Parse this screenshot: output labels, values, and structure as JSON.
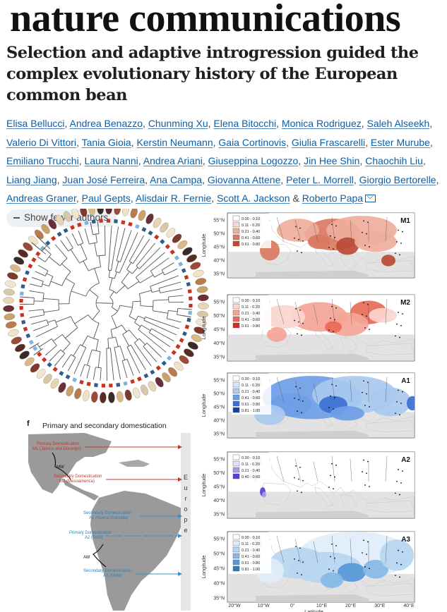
{
  "journal": "nature communications",
  "article": {
    "title": "Selection and adaptive introgression guided the complex evolutionary history of the European common bean"
  },
  "authors": [
    "Elisa Bellucci",
    "Andrea Benazzo",
    "Chunming Xu",
    "Elena Bitocchi",
    "Monica Rodriguez",
    "Saleh Alseekh",
    "Valerio Di Vittori",
    "Tania Gioia",
    "Kerstin Neumann",
    "Gaia Cortinovis",
    "Giulia Frascarelli",
    "Ester Murube",
    "Emiliano Trucchi",
    "Laura Nanni",
    "Andrea Ariani",
    "Giuseppina Logozzo",
    "Jin Hee Shin",
    "Chaochih Liu",
    "Liang Jiang",
    "Juan José Ferreira",
    "Ana Campa",
    "Giovanna Attene",
    "Peter L. Morrell",
    "Giorgio Bertorelle",
    "Andreas Graner",
    "Paul Gepts",
    "Alisdair R. Fernie",
    "Scott A. Jackson",
    "Roberto Papa"
  ],
  "show_fewer_label": "Show fewer authors",
  "figure": {
    "panel_f": {
      "letter": "f",
      "title": "Primary and secondary domestication",
      "europe_label": "Europe",
      "labels": {
        "m1_line1": "Primary Domestication",
        "m1_line2": "M1 (Jalisco and Durango)",
        "m2_line1": "Secondary Domestication",
        "m2_line2": "M2 (Mesoamerica)",
        "a1_line1": "Secondary Domestication",
        "a1_line2": "A1 (Nueva Granada)",
        "a2_line1": "Primary Domestication",
        "a2_line2": "A2 (Peru)",
        "a3_line1": "Secondary Domestication",
        "a3_line2": "A3 (Chile)",
        "mw": "MW",
        "aw": "AW"
      }
    },
    "maps": [
      {
        "id": "M1",
        "legend": [
          "0.00 - 0.10",
          "0.11 - 0.20",
          "0.21 - 0.40",
          "0.41 - 0.60",
          "0.61 - 0.80"
        ],
        "colors": [
          "#ffffff",
          "#f7d9d0",
          "#eeae9b",
          "#d97a62",
          "#bb4a36"
        ]
      },
      {
        "id": "M2",
        "legend": [
          "0.00 - 0.10",
          "0.11 - 0.20",
          "0.21 - 0.40",
          "0.41 - 0.60",
          "0.61 - 0.80"
        ],
        "colors": [
          "#ffffff",
          "#fbd6cf",
          "#f4a596",
          "#e86a58",
          "#cc2f24"
        ]
      },
      {
        "id": "A1",
        "legend": [
          "0.00 - 0.10",
          "0.11 - 0.20",
          "0.21 - 0.40",
          "0.41 - 0.60",
          "0.61 - 0.80",
          "0.81 - 1.00"
        ],
        "colors": [
          "#ffffff",
          "#d8e7f7",
          "#a9c9ef",
          "#6e9ee6",
          "#3b6fd3",
          "#1c3f9e"
        ]
      },
      {
        "id": "A2",
        "legend": [
          "0.00 - 0.10",
          "0.11 - 0.20",
          "0.21 - 0.40",
          "0.40 - 0.60"
        ],
        "colors": [
          "#ffffff",
          "#e3e0fa",
          "#a89be8",
          "#5a3fd0"
        ]
      },
      {
        "id": "A3",
        "legend": [
          "0.00 - 0.10",
          "0.11 - 0.20",
          "0.21 - 0.40",
          "0.41 - 0.60",
          "0.61 - 0.80",
          "0.81 - 1.00"
        ],
        "colors": [
          "#ffffff",
          "#dfedf9",
          "#b7d6f1",
          "#86b8e6",
          "#5797d8",
          "#2f78c4"
        ]
      }
    ],
    "lat_labels": [
      "55°N",
      "50°N",
      "45°N",
      "40°N",
      "35°N"
    ],
    "a3_lat_labels": [
      "55°N",
      "50°N",
      "45°N",
      "40°N",
      "35°N"
    ],
    "lon_labels": [
      "20°W",
      "10°W",
      "0°",
      "10°E",
      "20°E",
      "30°E",
      "40°E"
    ],
    "y_axis_label": "Longitude",
    "x_axis_label": "Latitude"
  }
}
